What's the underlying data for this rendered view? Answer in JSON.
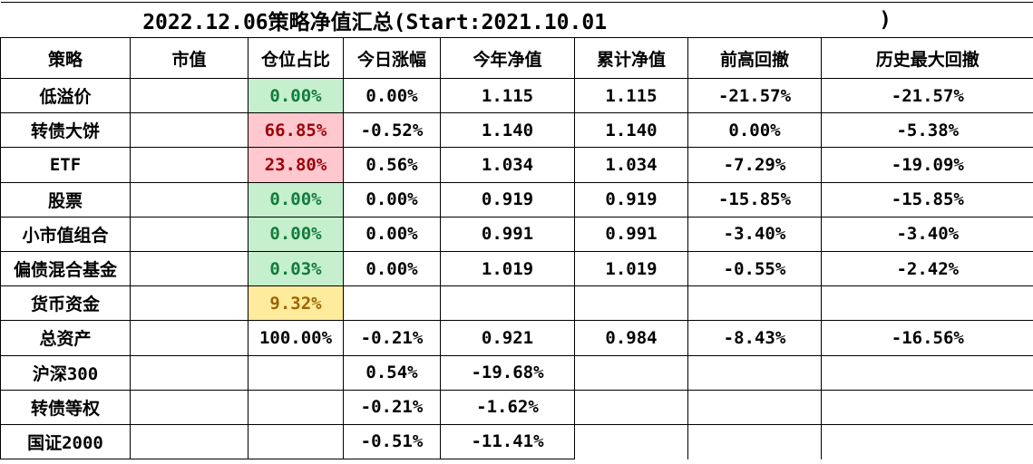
{
  "title": {
    "main": "2022.12.06策略净值汇总(Start:2021.10.01",
    "close_paren": ")"
  },
  "columns": [
    "策略",
    "市值",
    "仓位占比",
    "今日涨幅",
    "今年净值",
    "累计净值",
    "前高回撤",
    "历史最大回撤"
  ],
  "colors": {
    "good_bg": "#c6efce",
    "good_text": "#117b3b",
    "bad_bg": "#ffc7ce",
    "bad_text": "#9c0006",
    "neutral_bg": "#ffeb9c",
    "neutral_text": "#9c6500",
    "border": "#000000"
  },
  "rows": [
    {
      "name": "低溢价",
      "market_value": "",
      "position": "0.00%",
      "position_style": "good",
      "today_change": "0.00%",
      "ytd_nav": "1.115",
      "cum_nav": "1.115",
      "drawdown_from_high": "-21.57%",
      "max_drawdown": "-21.57%"
    },
    {
      "name": "转债大饼",
      "market_value": "",
      "position": "66.85%",
      "position_style": "bad",
      "today_change": "-0.52%",
      "ytd_nav": "1.140",
      "cum_nav": "1.140",
      "drawdown_from_high": "0.00%",
      "max_drawdown": "-5.38%"
    },
    {
      "name": "ETF",
      "market_value": "",
      "position": "23.80%",
      "position_style": "bad",
      "today_change": "0.56%",
      "ytd_nav": "1.034",
      "cum_nav": "1.034",
      "drawdown_from_high": "-7.29%",
      "max_drawdown": "-19.09%"
    },
    {
      "name": "股票",
      "market_value": "",
      "position": "0.00%",
      "position_style": "good",
      "today_change": "0.00%",
      "ytd_nav": "0.919",
      "cum_nav": "0.919",
      "drawdown_from_high": "-15.85%",
      "max_drawdown": "-15.85%"
    },
    {
      "name": "小市值组合",
      "market_value": "",
      "position": "0.00%",
      "position_style": "good",
      "today_change": "0.00%",
      "ytd_nav": "0.991",
      "cum_nav": "0.991",
      "drawdown_from_high": "-3.40%",
      "max_drawdown": "-3.40%"
    },
    {
      "name": "偏债混合基金",
      "market_value": "",
      "position": "0.03%",
      "position_style": "good",
      "today_change": "0.00%",
      "ytd_nav": "1.019",
      "cum_nav": "1.019",
      "drawdown_from_high": "-0.55%",
      "max_drawdown": "-2.42%"
    },
    {
      "name": "货币资金",
      "market_value": "",
      "position": "9.32%",
      "position_style": "neutral",
      "today_change": "",
      "ytd_nav": "",
      "cum_nav": "",
      "drawdown_from_high": "",
      "max_drawdown": ""
    },
    {
      "name": "总资产",
      "market_value": "",
      "position": "100.00%",
      "today_change": "-0.21%",
      "ytd_nav": "0.921",
      "cum_nav": "0.984",
      "drawdown_from_high": "-8.43%",
      "max_drawdown": "-16.56%"
    },
    {
      "name": "沪深300",
      "market_value": "",
      "position": "",
      "today_change": "0.54%",
      "ytd_nav": "-19.68%",
      "cum_nav": "",
      "drawdown_from_high": "",
      "max_drawdown": ""
    },
    {
      "name": "转债等权",
      "market_value": "",
      "position": "",
      "today_change": "-0.21%",
      "ytd_nav": "-1.62%",
      "cum_nav": "",
      "drawdown_from_high": "",
      "max_drawdown": ""
    },
    {
      "name": "国证2000",
      "market_value": "",
      "position": "",
      "today_change": "-0.51%",
      "ytd_nav": "-11.41%",
      "cum_nav": "",
      "drawdown_from_high": "",
      "max_drawdown": ""
    }
  ]
}
